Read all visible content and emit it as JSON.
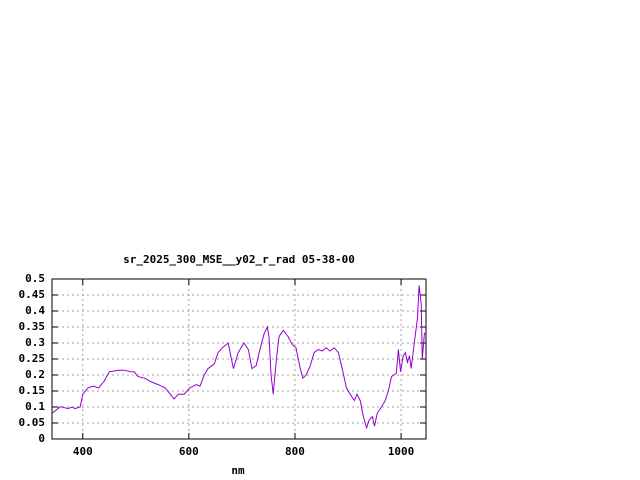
{
  "chart_data": {
    "type": "line",
    "title": "sr_2025_300_MSE__y02_r_rad 05-38-00",
    "xlabel": "nm",
    "color": "#9400d3",
    "grid": true,
    "xlim": [
      342,
      1047
    ],
    "ylim": [
      0,
      0.5
    ],
    "xticks": [
      400,
      600,
      800,
      1000
    ],
    "yticks": [
      0,
      0.05,
      0.1,
      0.15,
      0.2,
      0.25,
      0.3,
      0.35,
      0.4,
      0.45,
      0.5
    ],
    "x": [
      342,
      357,
      361,
      372,
      380,
      385,
      395,
      400,
      410,
      420,
      430,
      440,
      450,
      467,
      478,
      490,
      497,
      504,
      517,
      527,
      542,
      555,
      565,
      572,
      580,
      591,
      602,
      614,
      621,
      629,
      636,
      648,
      655,
      663,
      674,
      684,
      693,
      704,
      712,
      719,
      727,
      734,
      742,
      748,
      751,
      755,
      759,
      765,
      770,
      778,
      787,
      795,
      802,
      810,
      815,
      821,
      829,
      836,
      844,
      851,
      859,
      866,
      874,
      882,
      889,
      897,
      904,
      912,
      917,
      923,
      929,
      935,
      940,
      946,
      950,
      955,
      963,
      970,
      976,
      982,
      991,
      995,
      999,
      1004,
      1008,
      1012,
      1016,
      1019,
      1025,
      1031,
      1034,
      1038,
      1040,
      1044,
      1047
    ],
    "values": [
      0.08,
      0.1,
      0.1,
      0.095,
      0.1,
      0.095,
      0.1,
      0.14,
      0.16,
      0.165,
      0.16,
      0.18,
      0.21,
      0.215,
      0.215,
      0.21,
      0.21,
      0.195,
      0.19,
      0.18,
      0.17,
      0.16,
      0.14,
      0.125,
      0.14,
      0.14,
      0.16,
      0.17,
      0.165,
      0.2,
      0.22,
      0.235,
      0.27,
      0.285,
      0.3,
      0.22,
      0.27,
      0.3,
      0.28,
      0.22,
      0.23,
      0.28,
      0.33,
      0.35,
      0.32,
      0.2,
      0.14,
      0.25,
      0.32,
      0.34,
      0.32,
      0.295,
      0.285,
      0.22,
      0.19,
      0.2,
      0.23,
      0.27,
      0.28,
      0.275,
      0.285,
      0.275,
      0.285,
      0.27,
      0.22,
      0.16,
      0.14,
      0.12,
      0.14,
      0.12,
      0.07,
      0.035,
      0.06,
      0.07,
      0.04,
      0.08,
      0.1,
      0.12,
      0.15,
      0.195,
      0.205,
      0.28,
      0.21,
      0.26,
      0.27,
      0.24,
      0.26,
      0.22,
      0.3,
      0.38,
      0.48,
      0.42,
      0.25,
      0.33,
      0.33
    ]
  }
}
